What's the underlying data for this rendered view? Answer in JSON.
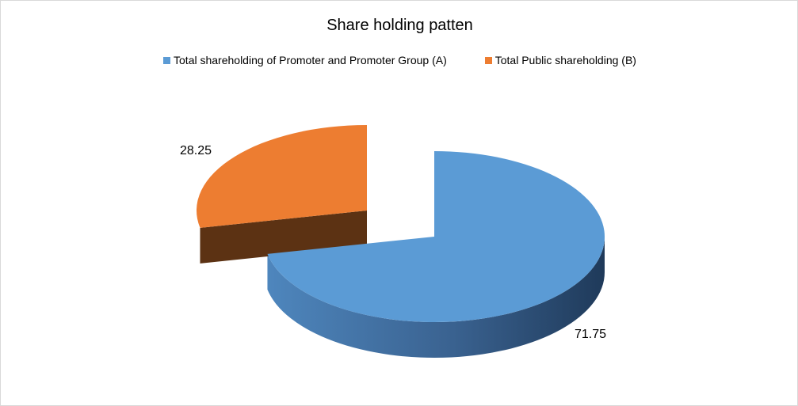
{
  "chart_data": {
    "type": "pie",
    "title": "Share holding patten",
    "slices": [
      {
        "label": "Total shareholding of Promoter and Promoter Group (A)",
        "value": 71.75,
        "value_label": "71.75",
        "color": "#5b9bd5"
      },
      {
        "label": "Total Public shareholding (B)",
        "value": 28.25,
        "value_label": "28.25",
        "color": "#ed7d31"
      }
    ],
    "legend_position": "top",
    "style": "3d-exploded"
  }
}
